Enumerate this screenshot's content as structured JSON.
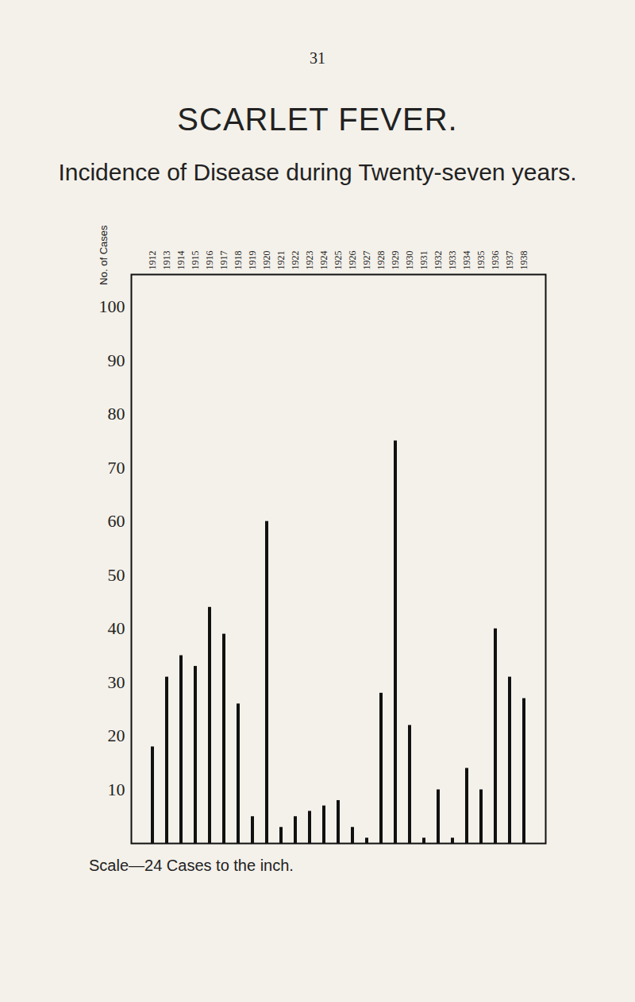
{
  "chart_data": {
    "type": "bar",
    "page_number": "31",
    "title": "SCARLET FEVER.",
    "subtitle": "Incidence of Disease during Twenty-seven years.",
    "y_label": "No. of Cases",
    "caption": "Scale—24 Cases to the inch.",
    "categories": [
      "1912",
      "1913",
      "1914",
      "1915",
      "1916",
      "1917",
      "1918",
      "1919",
      "1920",
      "1921",
      "1922",
      "1923",
      "1924",
      "1925",
      "1926",
      "1927",
      "1928",
      "1929",
      "1930",
      "1931",
      "1932",
      "1933",
      "1934",
      "1935",
      "1936",
      "1937",
      "1938"
    ],
    "values": [
      18,
      31,
      35,
      33,
      44,
      39,
      26,
      5,
      60,
      3,
      5,
      6,
      7,
      8,
      3,
      1,
      28,
      75,
      22,
      1,
      10,
      1,
      14,
      10,
      40,
      31,
      27
    ],
    "color": "#111111",
    "ylim": [
      0,
      106
    ],
    "yticks": [
      10,
      20,
      30,
      40,
      50,
      60,
      70,
      80,
      90,
      100
    ],
    "grid": false
  }
}
